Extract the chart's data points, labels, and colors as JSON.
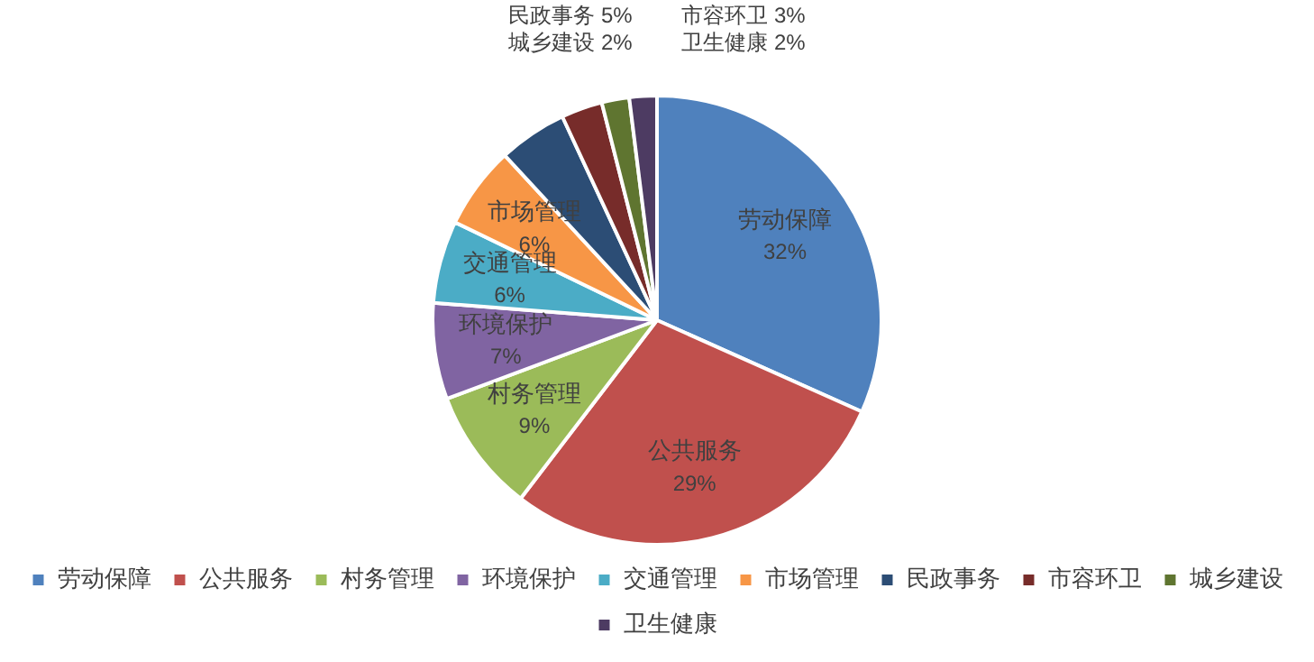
{
  "chart_data": {
    "type": "pie",
    "categories": [
      "劳动保障",
      "公共服务",
      "村务管理",
      "环境保护",
      "交通管理",
      "市场管理",
      "民政事务",
      "市容环卫",
      "城乡建设",
      "卫生健康"
    ],
    "values": [
      32,
      29,
      9,
      7,
      6,
      6,
      5,
      3,
      2,
      2
    ],
    "value_labels": [
      "32%",
      "29%",
      "9%",
      "7%",
      "6%",
      "6%",
      "5%",
      "3%",
      "2%",
      "2%"
    ],
    "colors": [
      "#4f81bd",
      "#c0504d",
      "#9bbb59",
      "#8064a2",
      "#4bacc6",
      "#f79646",
      "#2c4d75",
      "#772c2a",
      "#5f7530",
      "#4d3b62"
    ],
    "legend": "bottom"
  }
}
